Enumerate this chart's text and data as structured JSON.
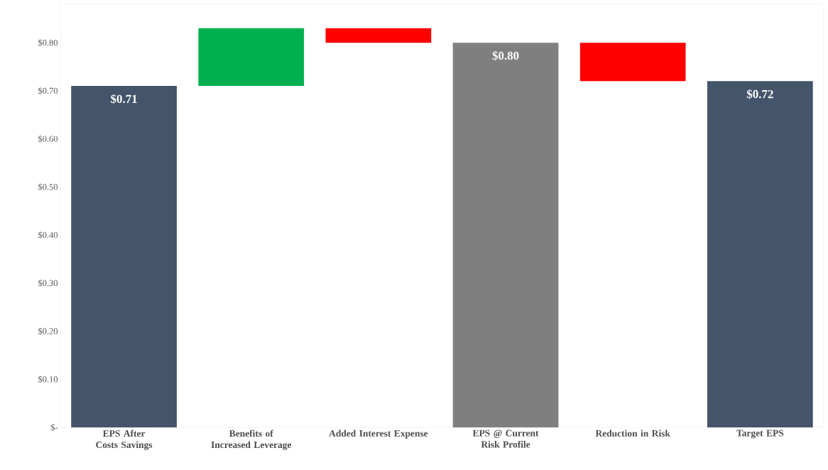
{
  "chart_data": {
    "type": "bar",
    "categories": [
      "EPS After Costs Savings",
      "Benefits of Increased Leverage",
      "Added Interest Expense",
      "EPS @ Current Risk Profile",
      "Reduction in Risk",
      "Target EPS"
    ],
    "values": [
      0.71,
      0.12,
      -0.03,
      0.8,
      -0.08,
      0.72
    ],
    "base": [
      0,
      0.71,
      0.83,
      0,
      0.8,
      0
    ],
    "colors": [
      "#44546a",
      "#00b050",
      "#ff0000",
      "#7f7f7f",
      "#ff0000",
      "#44546a"
    ],
    "value_labels": [
      "$0.71",
      null,
      null,
      "$0.80",
      null,
      "$0.72"
    ],
    "ylim": [
      0,
      0.88
    ],
    "yticks": [
      {
        "value": 0,
        "label": "$-"
      },
      {
        "value": 0.1,
        "label": "$0.10"
      },
      {
        "value": 0.2,
        "label": "$0.20"
      },
      {
        "value": 0.3,
        "label": "$0.30"
      },
      {
        "value": 0.4,
        "label": "$0.40"
      },
      {
        "value": 0.5,
        "label": "$0.50"
      },
      {
        "value": 0.6,
        "label": "$0.60"
      },
      {
        "value": 0.7,
        "label": "$0.70"
      },
      {
        "value": 0.8,
        "label": "$0.80"
      }
    ]
  }
}
